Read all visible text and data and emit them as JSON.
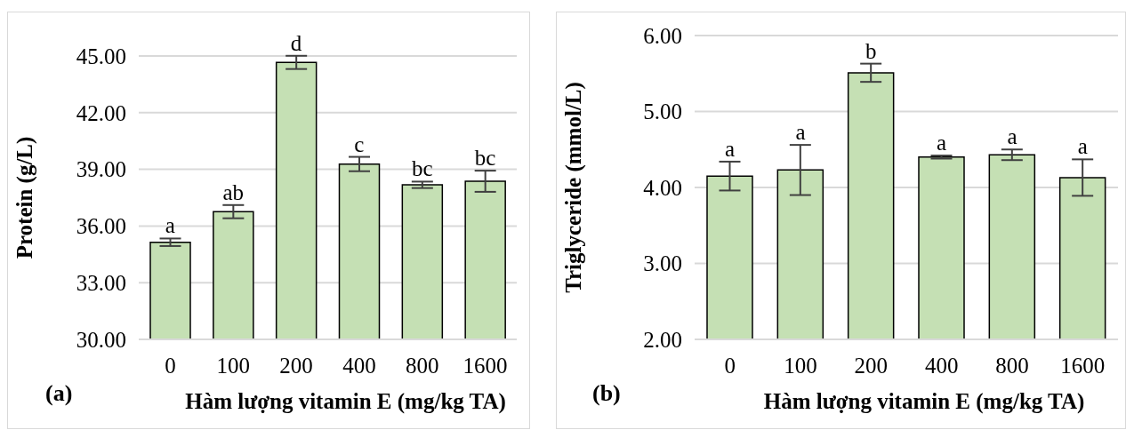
{
  "chart_data": [
    {
      "type": "bar",
      "ylabel": "Protein (g/L)",
      "xlabel": "Hàm lượng vitamin E (mg/kg TA)",
      "categories": [
        "0",
        "100",
        "200",
        "400",
        "800",
        "1600"
      ],
      "series": [
        {
          "color": "#c5e0b4",
          "values": [
            35.14,
            36.76,
            44.66,
            39.28,
            38.18,
            38.37
          ],
          "errors": [
            0.2,
            0.35,
            0.35,
            0.38,
            0.17,
            0.56
          ]
        }
      ],
      "ylim": [
        30,
        45
      ],
      "yticks": [
        {
          "value": 30,
          "label": "30.00"
        },
        {
          "value": 33,
          "label": "33.00"
        },
        {
          "value": 36,
          "label": "36.00"
        },
        {
          "value": 39,
          "label": "39.00"
        },
        {
          "value": 42,
          "label": "42.00"
        },
        {
          "value": 45,
          "label": "45.00"
        }
      ],
      "grid": "y",
      "legend": false,
      "annotations": [
        "(a)",
        {
          "text": "a",
          "x": "0",
          "y": 35.14
        },
        {
          "text": "ab",
          "x": "100",
          "y": 36.76
        },
        {
          "text": "d",
          "x": "200",
          "y": 44.66
        },
        {
          "text": "c",
          "x": "400",
          "y": 39.28
        },
        {
          "text": "bc",
          "x": "800",
          "y": 38.18
        },
        {
          "text": "bc",
          "x": "1600",
          "y": 38.37
        }
      ]
    },
    {
      "type": "bar",
      "ylabel": "Triglyceride (mmol/L)",
      "xlabel": "Hàm lượng vitamin E (mg/kg TA)",
      "categories": [
        "0",
        "100",
        "200",
        "400",
        "800",
        "1600"
      ],
      "series": [
        {
          "color": "#c5e0b4",
          "values": [
            4.15,
            4.23,
            5.51,
            4.4,
            4.43,
            4.13
          ],
          "errors": [
            0.19,
            0.33,
            0.12,
            0.02,
            0.07,
            0.24
          ]
        }
      ],
      "ylim": [
        2,
        6
      ],
      "yticks": [
        {
          "value": 2,
          "label": "2.00"
        },
        {
          "value": 3,
          "label": "3.00"
        },
        {
          "value": 4,
          "label": "4.00"
        },
        {
          "value": 5,
          "label": "5.00"
        },
        {
          "value": 6,
          "label": "6.00"
        }
      ],
      "grid": "y",
      "legend": false,
      "annotations": [
        "(b)",
        {
          "text": "a",
          "x": "0",
          "y": 4.15
        },
        {
          "text": "a",
          "x": "100",
          "y": 4.23
        },
        {
          "text": "b",
          "x": "200",
          "y": 5.51
        },
        {
          "text": "a",
          "x": "400",
          "y": 4.4
        },
        {
          "text": "a",
          "x": "800",
          "y": 4.43
        },
        {
          "text": "a",
          "x": "1600",
          "y": 4.13
        }
      ]
    }
  ]
}
